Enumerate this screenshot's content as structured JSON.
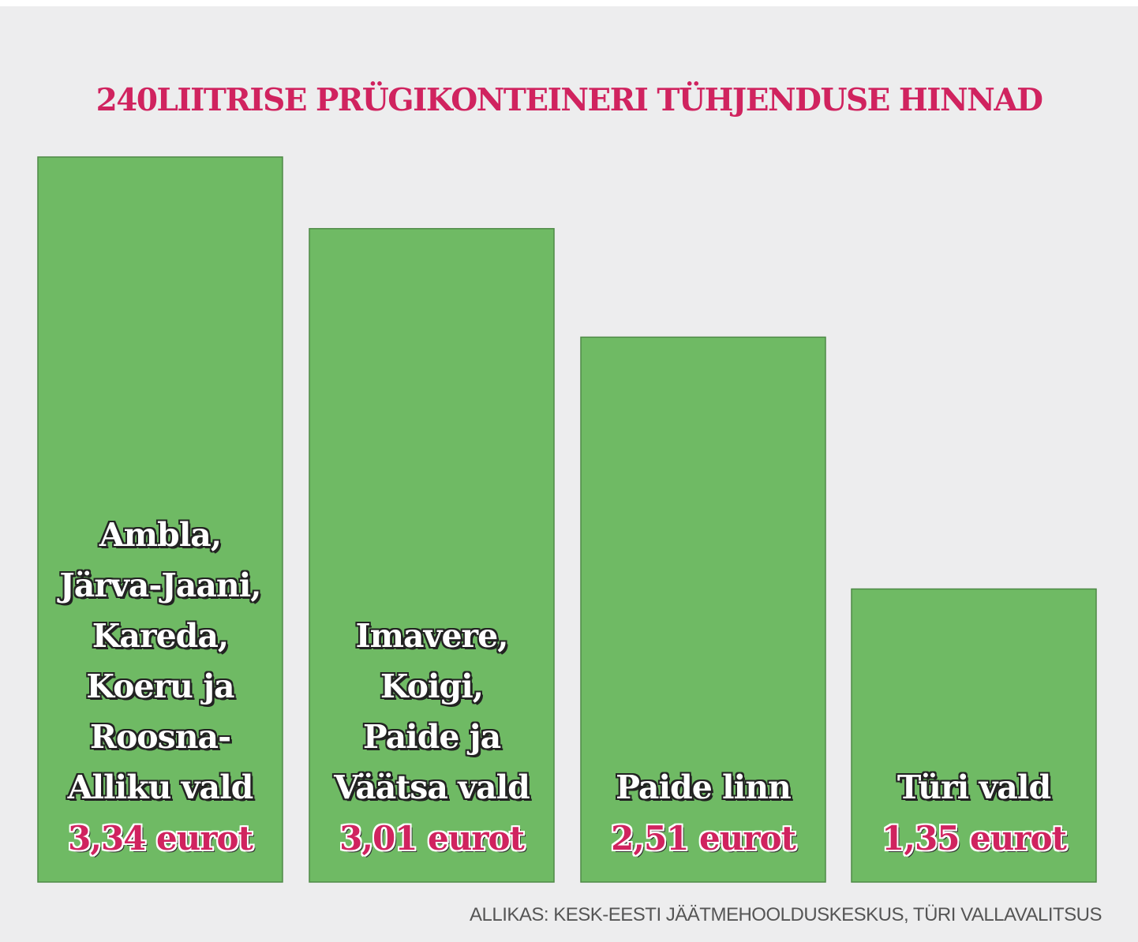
{
  "colors": {
    "bar": "#6fba64",
    "bar_border": "#4f8a47",
    "accent": "#d0235f",
    "background": "#ededee"
  },
  "chart_data": {
    "type": "bar",
    "title": "240LIITRISE PRÜGIKONTEINERI TÜHJENDUSE HINNAD",
    "categories": [
      "Ambla,\nJärva-Jaani,\nKareda,\nKoeru ja\nRoosna-\nAlliku vald",
      "Imavere,\nKoigi,\nPaide ja\nVäätsa vald",
      "Paide linn",
      "Türi vald"
    ],
    "values": [
      3.34,
      3.01,
      2.51,
      1.35
    ],
    "value_labels": [
      "3,34 eurot",
      "3,01 eurot",
      "2,51 eurot",
      "1,35 eurot"
    ],
    "ylim": [
      0,
      3.34
    ],
    "unit": "eurot",
    "grid": false,
    "source": "ALLIKAS: KESK-EESTI JÄÄTMEHOOLDUSKESKUS, TÜRI VALLAVALITSUS"
  }
}
